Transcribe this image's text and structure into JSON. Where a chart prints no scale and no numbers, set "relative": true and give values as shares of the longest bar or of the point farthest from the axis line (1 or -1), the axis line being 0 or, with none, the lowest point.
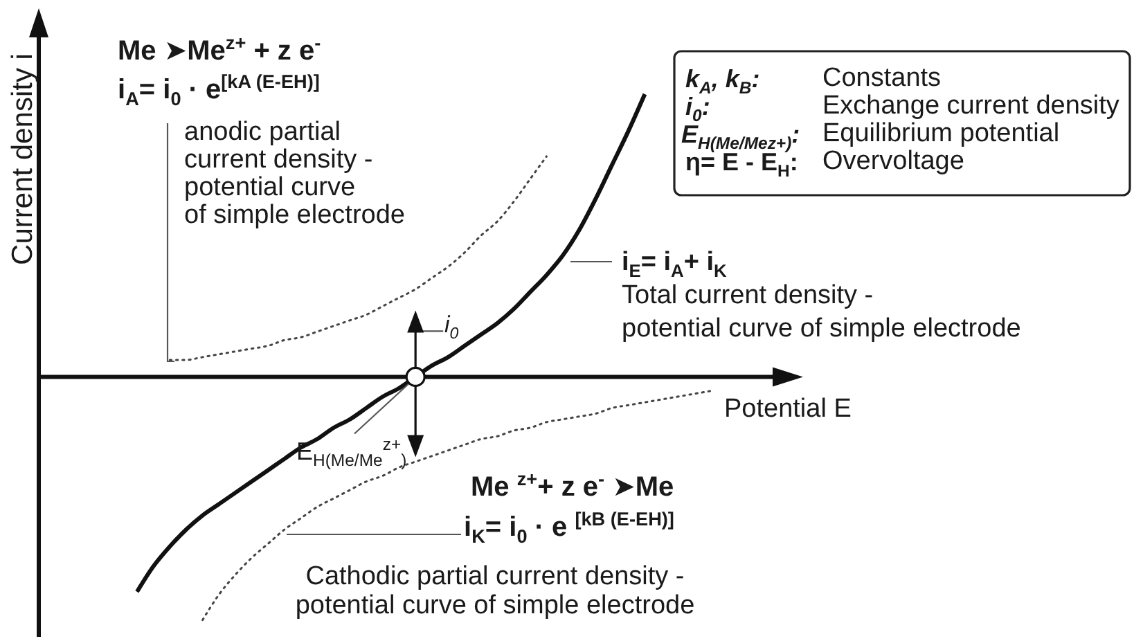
{
  "chart_data": {
    "type": "line",
    "relative": true,
    "marker": "none",
    "xlabel": "Potential E",
    "ylabel": "Current density i",
    "categories": [
      null,
      null,
      null,
      null,
      null,
      null,
      null,
      null,
      null,
      null,
      null,
      null,
      null,
      null,
      null,
      null,
      null,
      null,
      null,
      null,
      null,
      null,
      null,
      null,
      null,
      null,
      null,
      null,
      null,
      null,
      null,
      null,
      null,
      null,
      null,
      null,
      null,
      null,
      null,
      null,
      null,
      null,
      null,
      null,
      null,
      null,
      null,
      null
    ],
    "series": [
      {
        "color": "#444444",
        "line_style": "dotted",
        "values": [
          null,
          null,
          null,
          null,
          null,
          null,
          null,
          null,
          0.06,
          0.06,
          0.07,
          0.08,
          0.09,
          0.1,
          0.11,
          0.13,
          0.14,
          0.16,
          0.18,
          0.2,
          0.22,
          0.25,
          0.28,
          0.31,
          0.35,
          0.39,
          0.44,
          0.5,
          0.55,
          0.62,
          0.7,
          0.78,
          null,
          null,
          null,
          null,
          null,
          null,
          null,
          null,
          null,
          null,
          null,
          null,
          null,
          null,
          null,
          null
        ]
      },
      {
        "color": "#444444",
        "line_style": "dotted",
        "values": [
          null,
          null,
          null,
          null,
          null,
          null,
          null,
          null,
          null,
          null,
          -0.86,
          -0.77,
          -0.7,
          -0.64,
          -0.59,
          -0.54,
          -0.5,
          -0.46,
          -0.43,
          -0.4,
          -0.37,
          -0.35,
          -0.32,
          -0.3,
          -0.28,
          -0.26,
          -0.24,
          -0.22,
          -0.21,
          -0.19,
          -0.18,
          -0.16,
          -0.15,
          -0.14,
          -0.13,
          -0.11,
          -0.1,
          -0.09,
          -0.08,
          -0.07,
          -0.06,
          -0.05,
          null,
          null,
          null,
          null,
          null,
          null
        ]
      },
      {
        "color": "#111111",
        "line_style": "solid",
        "values": [
          null,
          null,
          null,
          null,
          null,
          null,
          -0.76,
          -0.67,
          -0.6,
          -0.54,
          -0.49,
          -0.45,
          -0.41,
          -0.37,
          -0.33,
          -0.29,
          -0.25,
          -0.22,
          -0.18,
          -0.15,
          -0.11,
          -0.07,
          -0.04,
          0,
          0.04,
          0.07,
          0.11,
          0.15,
          0.19,
          0.24,
          0.3,
          0.36,
          0.43,
          0.52,
          0.63,
          0.75,
          0.87,
          1,
          null,
          null,
          null,
          null,
          null,
          null,
          null,
          null,
          null,
          null
        ]
      }
    ],
    "annotations": [
      "Me ➤Me$^{z+}$ + z e$^{-}$",
      "i$_{A}$= i$_{0}$ · e$^{[kA (E-EH)]}$",
      "anodic partial\ncurrent density -\npotential curve\nof simple electrode",
      "i$_{E}$= i$_{A}$+ i$_{K}$",
      "Total current density -\npotential curve of simple electrode",
      "i$_{0}$",
      "E$_{H(Me/Me}$$^{z+}$$_{)}$",
      "Me $^{z+}$+ z e$^{-}$  ➤Me",
      "i$_{K}$= i$_{0}$ · e $^{[kB (E-EH)]}$",
      "Cathodic partial current density -\npotential curve of simple electrode",
      "k$_{A}$, k$_{B}$:",
      "Constants",
      "i$_{0}$:",
      "Exchange current density",
      "E$_{H(Me/Mez+)}$:",
      "Equilibrium potential",
      "η= E - E$_{H}$:",
      "Overvoltage"
    ]
  }
}
